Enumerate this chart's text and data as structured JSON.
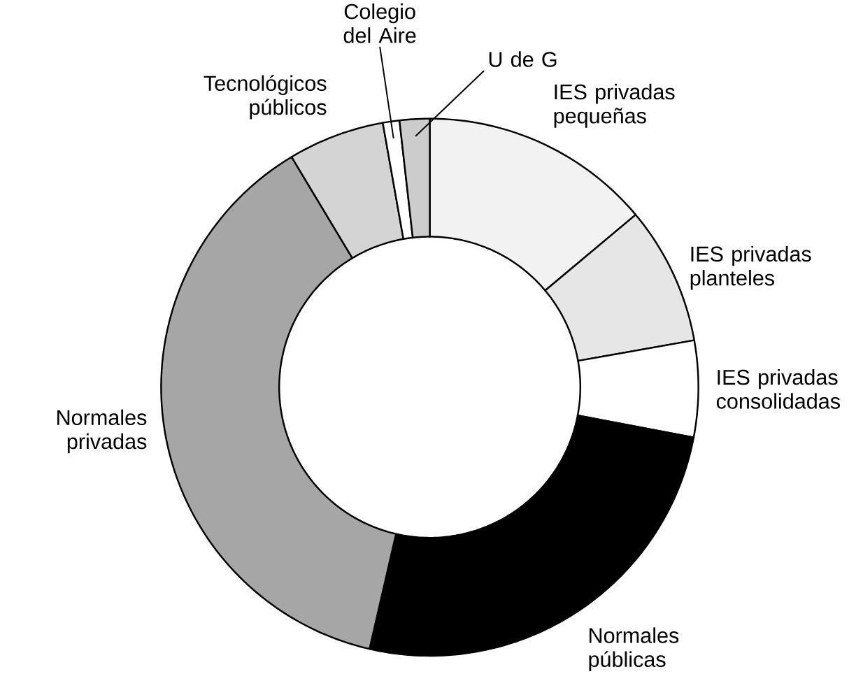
{
  "chart_data": {
    "type": "donut",
    "categories": [
      "IES privadas pequeñas",
      "IES privadas planteles",
      "IES privadas consolidadas",
      "Normales públicas",
      "Normales privadas",
      "Tecnológicos públicos",
      "Colegio del Aire",
      "U de G"
    ],
    "values": [
      13.9,
      8.3,
      5.8,
      25.6,
      37.8,
      5.8,
      1.0,
      1.8
    ],
    "colors": [
      "#f2f2f2",
      "#e6e6e6",
      "#ffffff",
      "#000000",
      "#a6a6a6",
      "#d4d4d4",
      "#ffffff",
      "#cccccc"
    ]
  }
}
